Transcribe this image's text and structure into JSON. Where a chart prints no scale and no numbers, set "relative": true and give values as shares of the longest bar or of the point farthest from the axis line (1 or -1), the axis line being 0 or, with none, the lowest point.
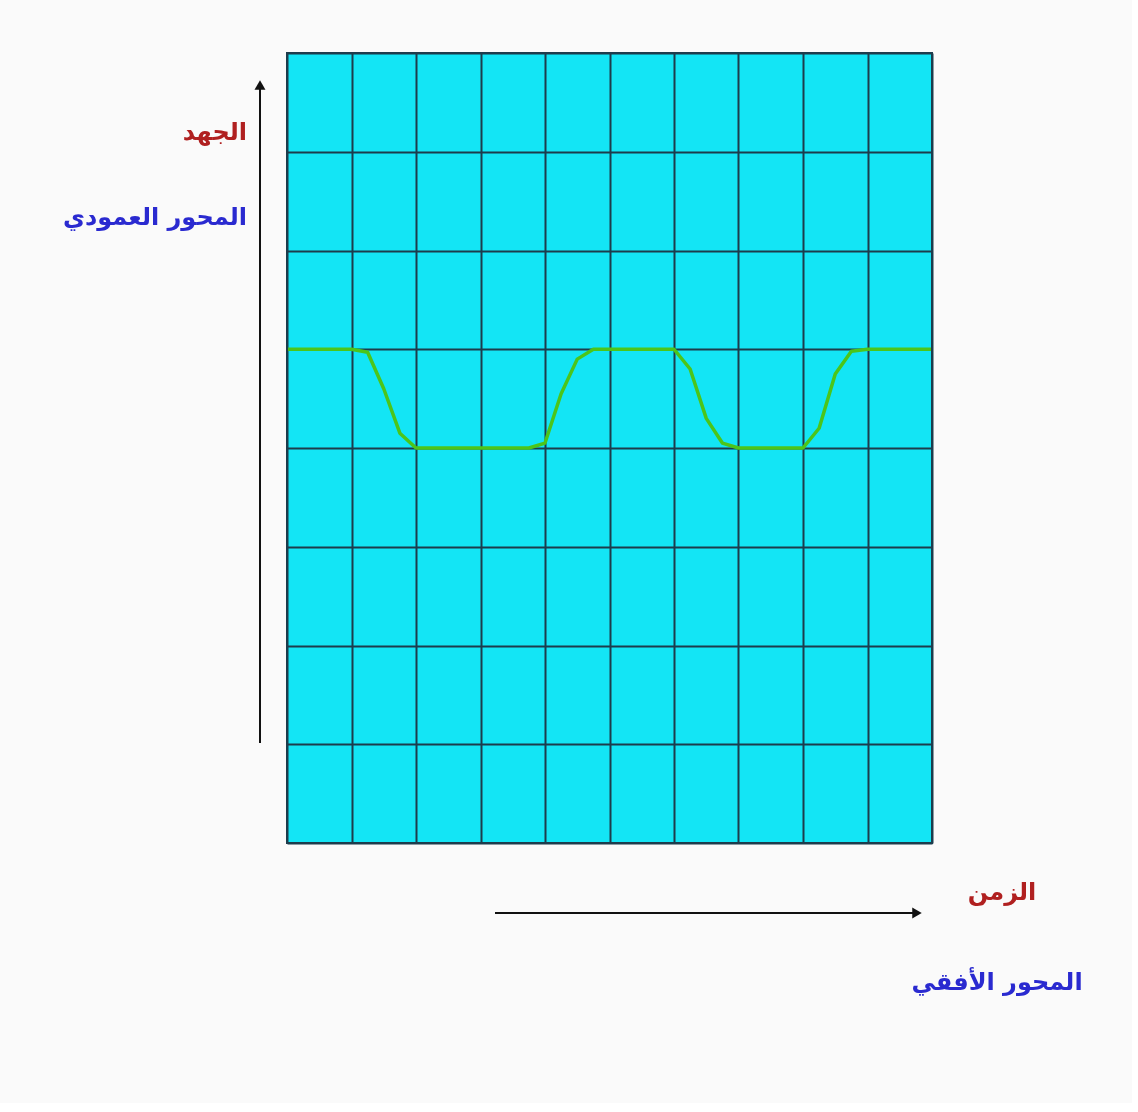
{
  "chart_data": {
    "type": "line",
    "relative": true,
    "annotations": [
      "الجهد",
      "المحور العمودي",
      "الزمن",
      "المحور الأفقي"
    ],
    "categories": [
      null,
      null,
      null,
      null,
      null,
      null,
      null,
      null,
      null,
      null,
      null,
      null,
      null,
      null,
      null,
      null,
      null,
      null,
      null,
      null,
      null,
      null,
      null,
      null,
      null,
      null,
      null,
      null,
      null,
      null,
      null,
      null,
      null,
      null,
      null,
      null,
      null,
      null,
      null,
      null,
      null
    ],
    "series": [
      {
        "color": "#4cc51a",
        "values": [
          1,
          1,
          1,
          1,
          1,
          0.97,
          0.6,
          0.15,
          0,
          0,
          0,
          0,
          0,
          0,
          0,
          0,
          0.05,
          0.55,
          0.9,
          1,
          1,
          1,
          1,
          1,
          1,
          0.8,
          0.3,
          0.05,
          0,
          0,
          0,
          0,
          0,
          0.2,
          0.75,
          0.98,
          1,
          1,
          1,
          1,
          1
        ]
      }
    ],
    "grid": true,
    "tick_labels": false,
    "marker": "none",
    "line_style": "solid"
  }
}
